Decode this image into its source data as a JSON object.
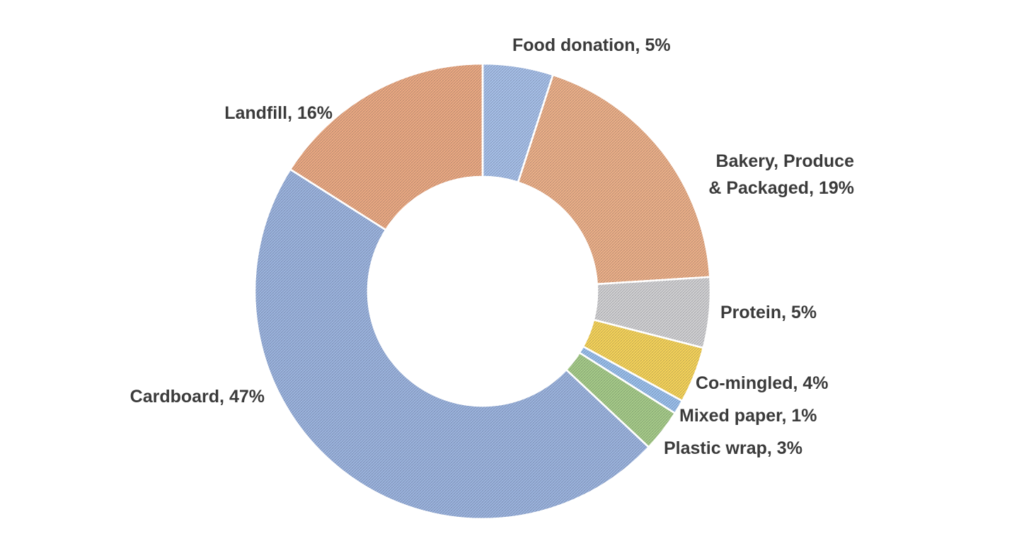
{
  "chart_data": {
    "type": "pie",
    "donut": true,
    "title": "",
    "slices": [
      {
        "label_lines": [
          "Food donation, 5%"
        ],
        "value": 5,
        "color": "#aac4ec"
      },
      {
        "label_lines": [
          "Bakery, Produce",
          "& Packaged, 19%"
        ],
        "value": 19,
        "color": "#f1b48a"
      },
      {
        "label_lines": [
          "Protein, 5%"
        ],
        "value": 5,
        "color": "#d6d6d6"
      },
      {
        "label_lines": [
          "Co-mingled, 4%"
        ],
        "value": 4,
        "color": "#fbd85a"
      },
      {
        "label_lines": [
          "Mixed paper, 1%"
        ],
        "value": 1,
        "color": "#9dc3ef"
      },
      {
        "label_lines": [
          "Plastic wrap, 3%"
        ],
        "value": 3,
        "color": "#a9d08a"
      },
      {
        "label_lines": [
          "Cardboard, 47%"
        ],
        "value": 47,
        "color": "#9fb8e2"
      },
      {
        "label_lines": [
          "Landfill, 16%"
        ],
        "value": 16,
        "color": "#f0ad84"
      }
    ]
  }
}
